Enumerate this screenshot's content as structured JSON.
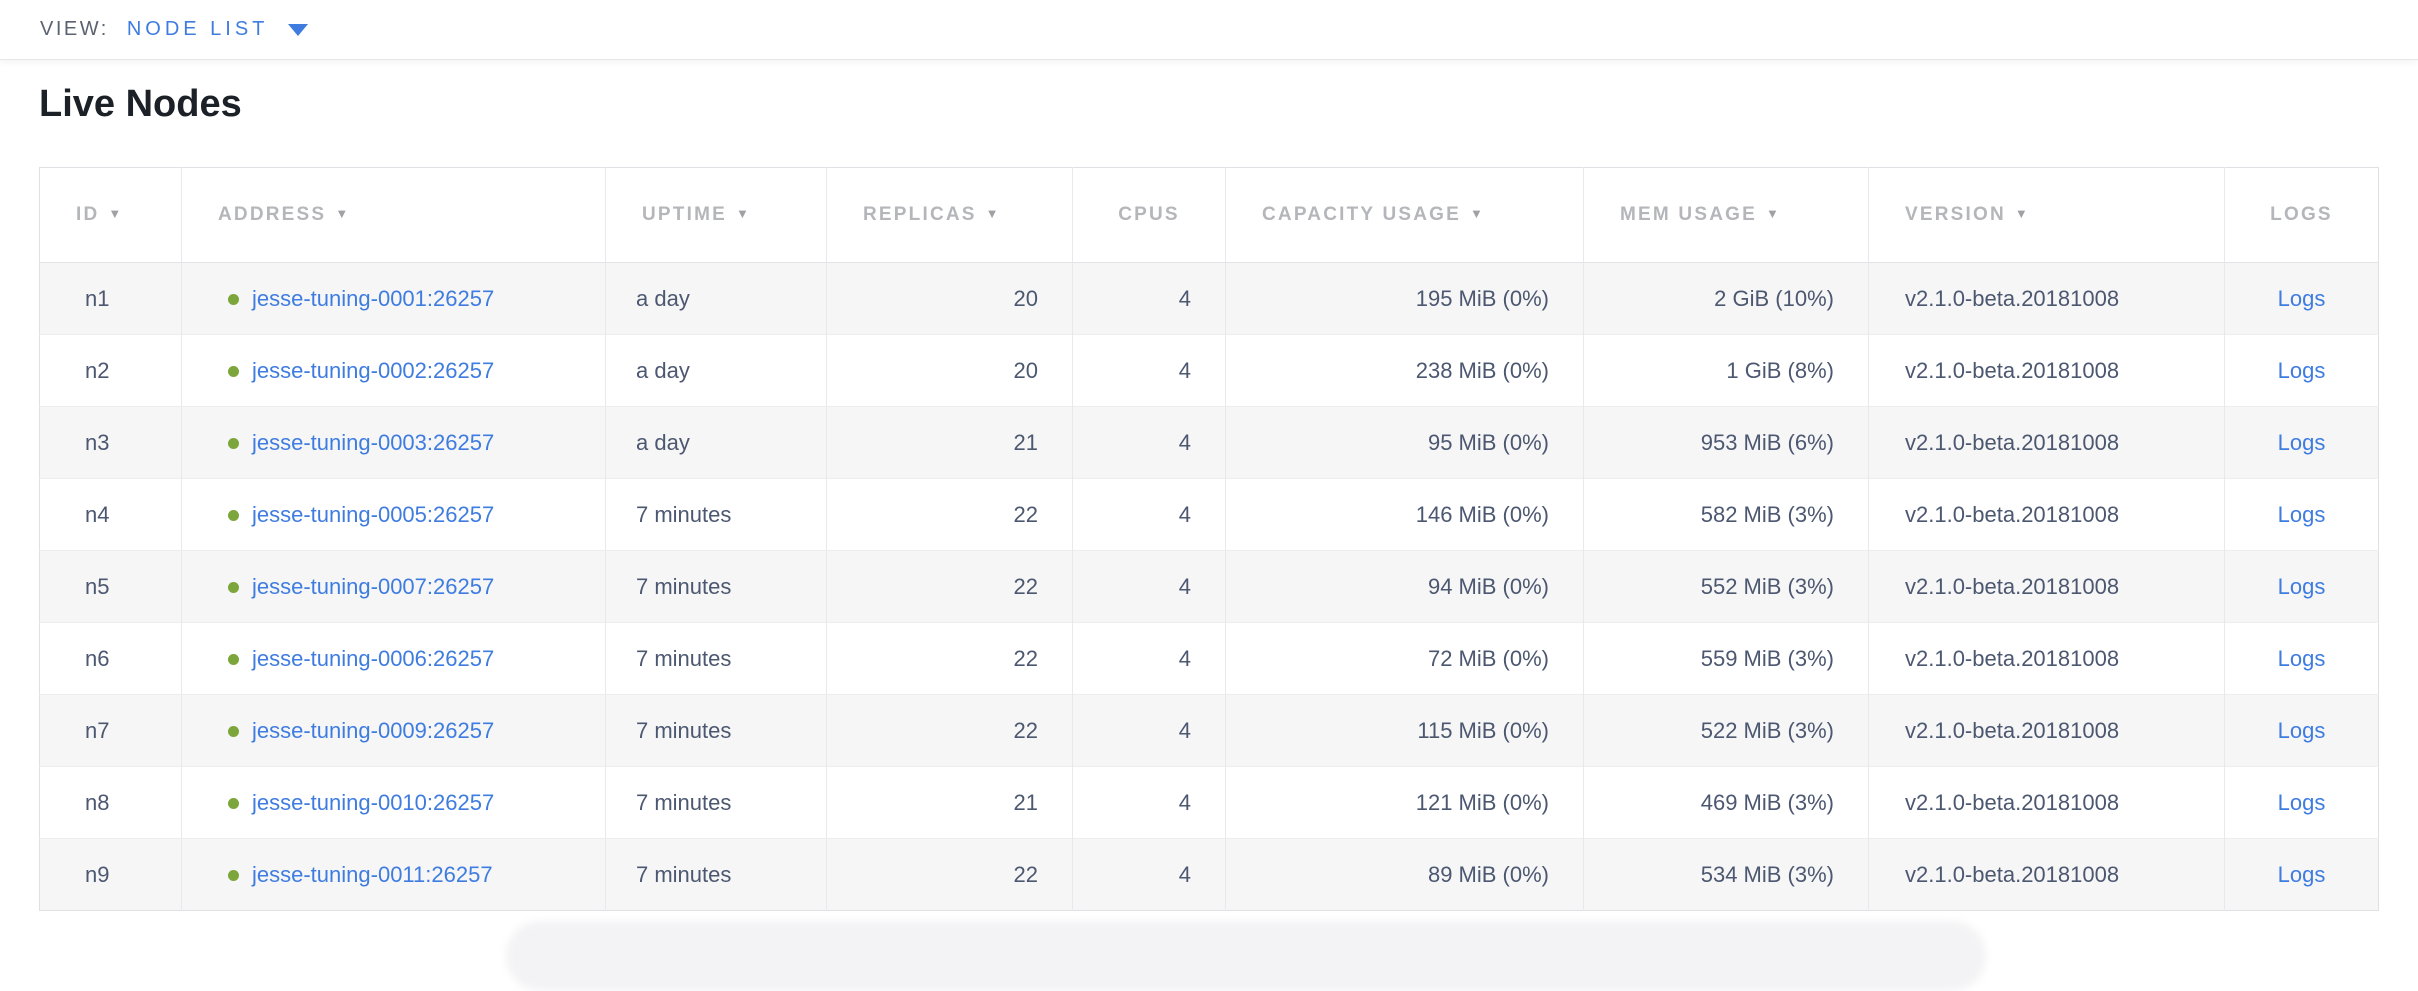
{
  "view_bar": {
    "label": "VIEW:",
    "selected_view": "NODE LIST"
  },
  "page": {
    "title": "Live Nodes"
  },
  "colors": {
    "accent_blue": "#3e7ce0",
    "status_green": "#7ca53c",
    "header_gray": "#b4b6ba",
    "cell_text": "#4c5770"
  },
  "table": {
    "columns": [
      {
        "key": "id",
        "label": "ID",
        "sortable": true
      },
      {
        "key": "address",
        "label": "ADDRESS",
        "sortable": true
      },
      {
        "key": "uptime",
        "label": "UPTIME",
        "sortable": true
      },
      {
        "key": "replicas",
        "label": "REPLICAS",
        "sortable": true
      },
      {
        "key": "cpus",
        "label": "CPUS",
        "sortable": false
      },
      {
        "key": "capacity_usage",
        "label": "CAPACITY USAGE",
        "sortable": true
      },
      {
        "key": "mem_usage",
        "label": "MEM USAGE",
        "sortable": true
      },
      {
        "key": "version",
        "label": "VERSION",
        "sortable": true
      },
      {
        "key": "logs",
        "label": "LOGS",
        "sortable": false
      }
    ],
    "rows": [
      {
        "id": "n1",
        "address": "jesse-tuning-0001:26257",
        "status": "live",
        "uptime": "a day",
        "replicas": "20",
        "cpus": "4",
        "capacity_usage": "195 MiB (0%)",
        "mem_usage": "2 GiB (10%)",
        "version": "v2.1.0-beta.20181008",
        "logs": "Logs"
      },
      {
        "id": "n2",
        "address": "jesse-tuning-0002:26257",
        "status": "live",
        "uptime": "a day",
        "replicas": "20",
        "cpus": "4",
        "capacity_usage": "238 MiB (0%)",
        "mem_usage": "1 GiB (8%)",
        "version": "v2.1.0-beta.20181008",
        "logs": "Logs"
      },
      {
        "id": "n3",
        "address": "jesse-tuning-0003:26257",
        "status": "live",
        "uptime": "a day",
        "replicas": "21",
        "cpus": "4",
        "capacity_usage": "95 MiB (0%)",
        "mem_usage": "953 MiB (6%)",
        "version": "v2.1.0-beta.20181008",
        "logs": "Logs"
      },
      {
        "id": "n4",
        "address": "jesse-tuning-0005:26257",
        "status": "live",
        "uptime": "7 minutes",
        "replicas": "22",
        "cpus": "4",
        "capacity_usage": "146 MiB (0%)",
        "mem_usage": "582 MiB (3%)",
        "version": "v2.1.0-beta.20181008",
        "logs": "Logs"
      },
      {
        "id": "n5",
        "address": "jesse-tuning-0007:26257",
        "status": "live",
        "uptime": "7 minutes",
        "replicas": "22",
        "cpus": "4",
        "capacity_usage": "94 MiB (0%)",
        "mem_usage": "552 MiB (3%)",
        "version": "v2.1.0-beta.20181008",
        "logs": "Logs"
      },
      {
        "id": "n6",
        "address": "jesse-tuning-0006:26257",
        "status": "live",
        "uptime": "7 minutes",
        "replicas": "22",
        "cpus": "4",
        "capacity_usage": "72 MiB (0%)",
        "mem_usage": "559 MiB (3%)",
        "version": "v2.1.0-beta.20181008",
        "logs": "Logs"
      },
      {
        "id": "n7",
        "address": "jesse-tuning-0009:26257",
        "status": "live",
        "uptime": "7 minutes",
        "replicas": "22",
        "cpus": "4",
        "capacity_usage": "115 MiB (0%)",
        "mem_usage": "522 MiB (3%)",
        "version": "v2.1.0-beta.20181008",
        "logs": "Logs"
      },
      {
        "id": "n8",
        "address": "jesse-tuning-0010:26257",
        "status": "live",
        "uptime": "7 minutes",
        "replicas": "21",
        "cpus": "4",
        "capacity_usage": "121 MiB (0%)",
        "mem_usage": "469 MiB (3%)",
        "version": "v2.1.0-beta.20181008",
        "logs": "Logs"
      },
      {
        "id": "n9",
        "address": "jesse-tuning-0011:26257",
        "status": "live",
        "uptime": "7 minutes",
        "replicas": "22",
        "cpus": "4",
        "capacity_usage": "89 MiB (0%)",
        "mem_usage": "534 MiB (3%)",
        "version": "v2.1.0-beta.20181008",
        "logs": "Logs"
      }
    ]
  }
}
